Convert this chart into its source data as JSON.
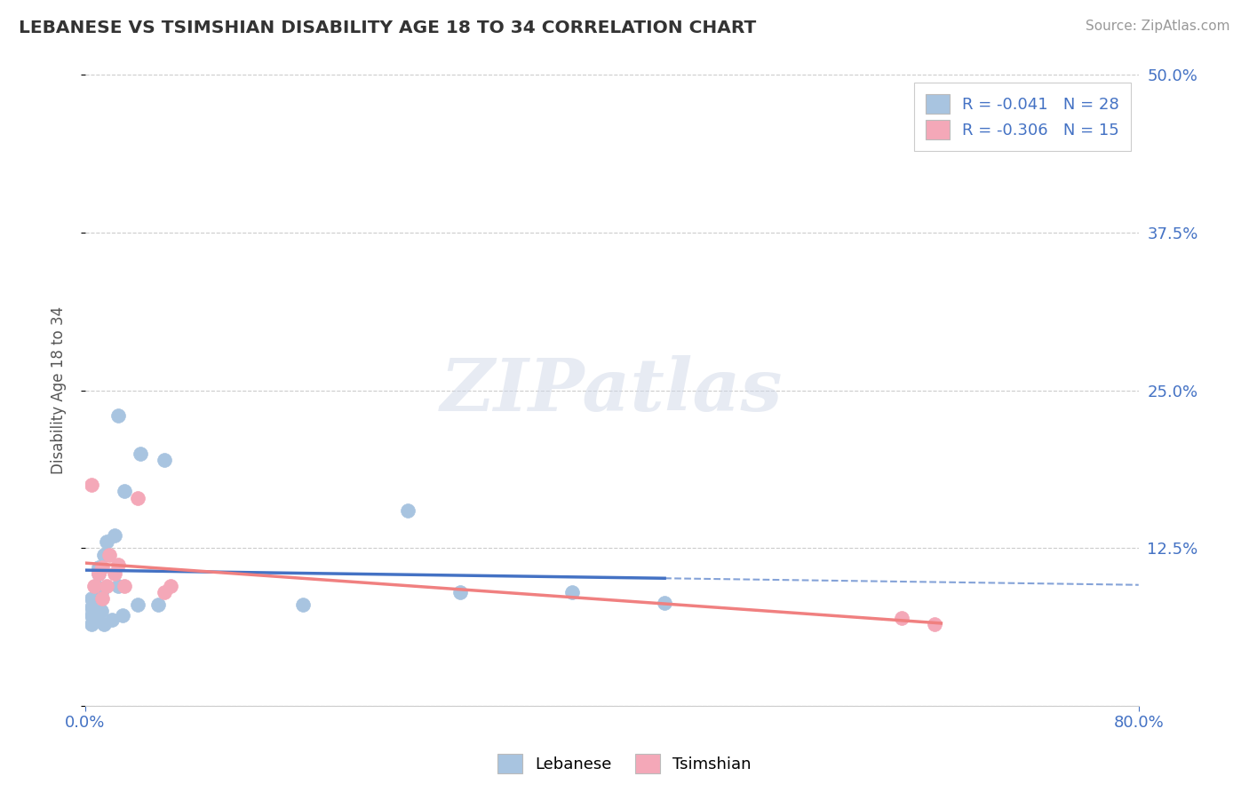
{
  "title": "LEBANESE VS TSIMSHIAN DISABILITY AGE 18 TO 34 CORRELATION CHART",
  "source": "Source: ZipAtlas.com",
  "ylabel": "Disability Age 18 to 34",
  "xlim": [
    0.0,
    0.8
  ],
  "ylim": [
    0.0,
    0.5
  ],
  "yticks": [
    0.0,
    0.125,
    0.25,
    0.375,
    0.5
  ],
  "yticklabels": [
    "",
    "12.5%",
    "25.0%",
    "37.5%",
    "50.0%"
  ],
  "legend_r_leb": "R = -0.041",
  "legend_n_leb": "N = 28",
  "legend_r_tsi": "R = -0.306",
  "legend_n_tsi": "N = 15",
  "leb_color": "#a8c4e0",
  "tsi_color": "#f4a8b8",
  "leb_line_color": "#4472c4",
  "tsi_line_color": "#f08080",
  "background_color": "#ffffff",
  "leb_points_x": [
    0.005,
    0.005,
    0.005,
    0.005,
    0.008,
    0.008,
    0.01,
    0.01,
    0.012,
    0.012,
    0.014,
    0.014,
    0.016,
    0.02,
    0.022,
    0.025,
    0.025,
    0.028,
    0.03,
    0.04,
    0.042,
    0.055,
    0.06,
    0.165,
    0.245,
    0.285,
    0.37,
    0.44
  ],
  "leb_points_y": [
    0.065,
    0.072,
    0.078,
    0.085,
    0.072,
    0.095,
    0.105,
    0.11,
    0.075,
    0.09,
    0.065,
    0.12,
    0.13,
    0.068,
    0.135,
    0.23,
    0.095,
    0.072,
    0.17,
    0.08,
    0.2,
    0.08,
    0.195,
    0.08,
    0.155,
    0.09,
    0.09,
    0.082
  ],
  "tsi_points_x": [
    0.005,
    0.007,
    0.01,
    0.013,
    0.013,
    0.016,
    0.018,
    0.022,
    0.025,
    0.03,
    0.04,
    0.06,
    0.065,
    0.62,
    0.645
  ],
  "tsi_points_y": [
    0.175,
    0.095,
    0.105,
    0.085,
    0.11,
    0.095,
    0.12,
    0.105,
    0.112,
    0.095,
    0.165,
    0.09,
    0.095,
    0.07,
    0.065
  ],
  "leb_line_x0": 0.0,
  "leb_line_x_solid_end": 0.44,
  "leb_line_x_dash_end": 0.8,
  "tsi_line_x0": 0.0,
  "tsi_line_x_end": 0.65
}
